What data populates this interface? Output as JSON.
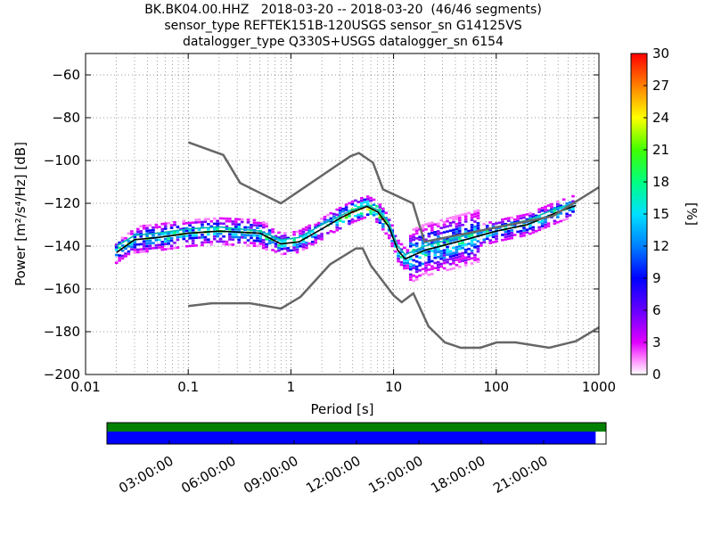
{
  "title_lines": [
    "BK.BK04.00.HHZ   2018-03-20 -- 2018-03-20  (46/46 segments)",
    "sensor_type REFTEK151B-120USGS sensor_sn G14125VS",
    "datalogger_type Q330S+USGS datalogger_sn 6154"
  ],
  "chart_data": {
    "type": "heatmap",
    "xlabel": "Period [s]",
    "ylabel": "Power [m²/s⁴/Hz] [dB]",
    "x_scale": "log",
    "xlim": [
      0.01,
      1000
    ],
    "ylim": [
      -200,
      -50
    ],
    "x_ticks": [
      {
        "value": 0.01,
        "label": "0.01"
      },
      {
        "value": 0.1,
        "label": "0.1"
      },
      {
        "value": 1,
        "label": "1"
      },
      {
        "value": 10,
        "label": "10"
      },
      {
        "value": 100,
        "label": "100"
      },
      {
        "value": 1000,
        "label": "1000"
      }
    ],
    "y_ticks": [
      -60,
      -80,
      -100,
      -120,
      -140,
      -160,
      -180,
      -200
    ],
    "grid": "dotted",
    "colorbar": {
      "label": "[%]",
      "range": [
        0,
        30
      ],
      "ticks": [
        0,
        3,
        6,
        9,
        12,
        15,
        18,
        21,
        24,
        27,
        30
      ]
    },
    "high_noise_model": [
      [
        0.1,
        -91.5
      ],
      [
        0.22,
        -97.4
      ],
      [
        0.32,
        -110.5
      ],
      [
        0.8,
        -120
      ],
      [
        3.8,
        -98
      ],
      [
        4.6,
        -96.5
      ],
      [
        6.3,
        -101
      ],
      [
        7.9,
        -113.5
      ],
      [
        15.4,
        -120
      ],
      [
        20,
        -138
      ],
      [
        354.8,
        -126
      ],
      [
        1000,
        -112.5
      ]
    ],
    "low_noise_model": [
      [
        0.1,
        -168
      ],
      [
        0.17,
        -166.7
      ],
      [
        0.4,
        -166.7
      ],
      [
        0.8,
        -169.2
      ],
      [
        1.24,
        -163.7
      ],
      [
        2.4,
        -148.6
      ],
      [
        4.3,
        -141.1
      ],
      [
        5,
        -141.1
      ],
      [
        6,
        -149
      ],
      [
        10,
        -163
      ],
      [
        12,
        -166.2
      ],
      [
        15.6,
        -162.1
      ],
      [
        21.9,
        -177.5
      ],
      [
        31.6,
        -185
      ],
      [
        45,
        -187.5
      ],
      [
        70,
        -187.5
      ],
      [
        101,
        -185
      ],
      [
        154,
        -185
      ],
      [
        328,
        -187.5
      ],
      [
        600,
        -184.4
      ],
      [
        1000,
        -178
      ]
    ],
    "mode_curve": [
      [
        0.02,
        -143
      ],
      [
        0.03,
        -137
      ],
      [
        0.05,
        -136
      ],
      [
        0.1,
        -134
      ],
      [
        0.2,
        -133
      ],
      [
        0.5,
        -134
      ],
      [
        0.8,
        -139
      ],
      [
        1.2,
        -138
      ],
      [
        2,
        -132
      ],
      [
        3,
        -127
      ],
      [
        4,
        -124
      ],
      [
        5.5,
        -121.5
      ],
      [
        7,
        -124
      ],
      [
        9,
        -131
      ],
      [
        11,
        -142
      ],
      [
        13,
        -146
      ],
      [
        20,
        -142
      ],
      [
        50,
        -137
      ],
      [
        100,
        -133
      ],
      [
        200,
        -130
      ],
      [
        400,
        -124
      ],
      [
        600,
        -121
      ]
    ],
    "percentile_curve": [
      [
        0.02,
        -140
      ],
      [
        0.03,
        -135
      ],
      [
        0.05,
        -134
      ],
      [
        0.1,
        -132
      ],
      [
        0.2,
        -131
      ],
      [
        0.5,
        -133
      ],
      [
        0.8,
        -137
      ],
      [
        1.2,
        -136
      ],
      [
        2,
        -130
      ],
      [
        3,
        -126
      ],
      [
        4,
        -123
      ],
      [
        5.5,
        -121
      ],
      [
        7,
        -123
      ],
      [
        9,
        -129
      ],
      [
        11,
        -140
      ],
      [
        13,
        -144
      ],
      [
        20,
        -140
      ],
      [
        50,
        -135
      ],
      [
        100,
        -131
      ],
      [
        200,
        -128
      ],
      [
        400,
        -122
      ],
      [
        600,
        -120
      ]
    ],
    "timeline": {
      "tick_labels": [
        "03:00:00",
        "06:00:00",
        "09:00:00",
        "12:00:00",
        "15:00:00",
        "18:00:00",
        "21:00:00"
      ],
      "tick_hours": [
        3,
        6,
        9,
        12,
        15,
        18,
        21
      ],
      "span_hours": [
        0,
        24
      ],
      "data_coverage_end_hours": 23.5,
      "data_color": "#0000ff",
      "gap_indicator_color": "#008000"
    }
  }
}
